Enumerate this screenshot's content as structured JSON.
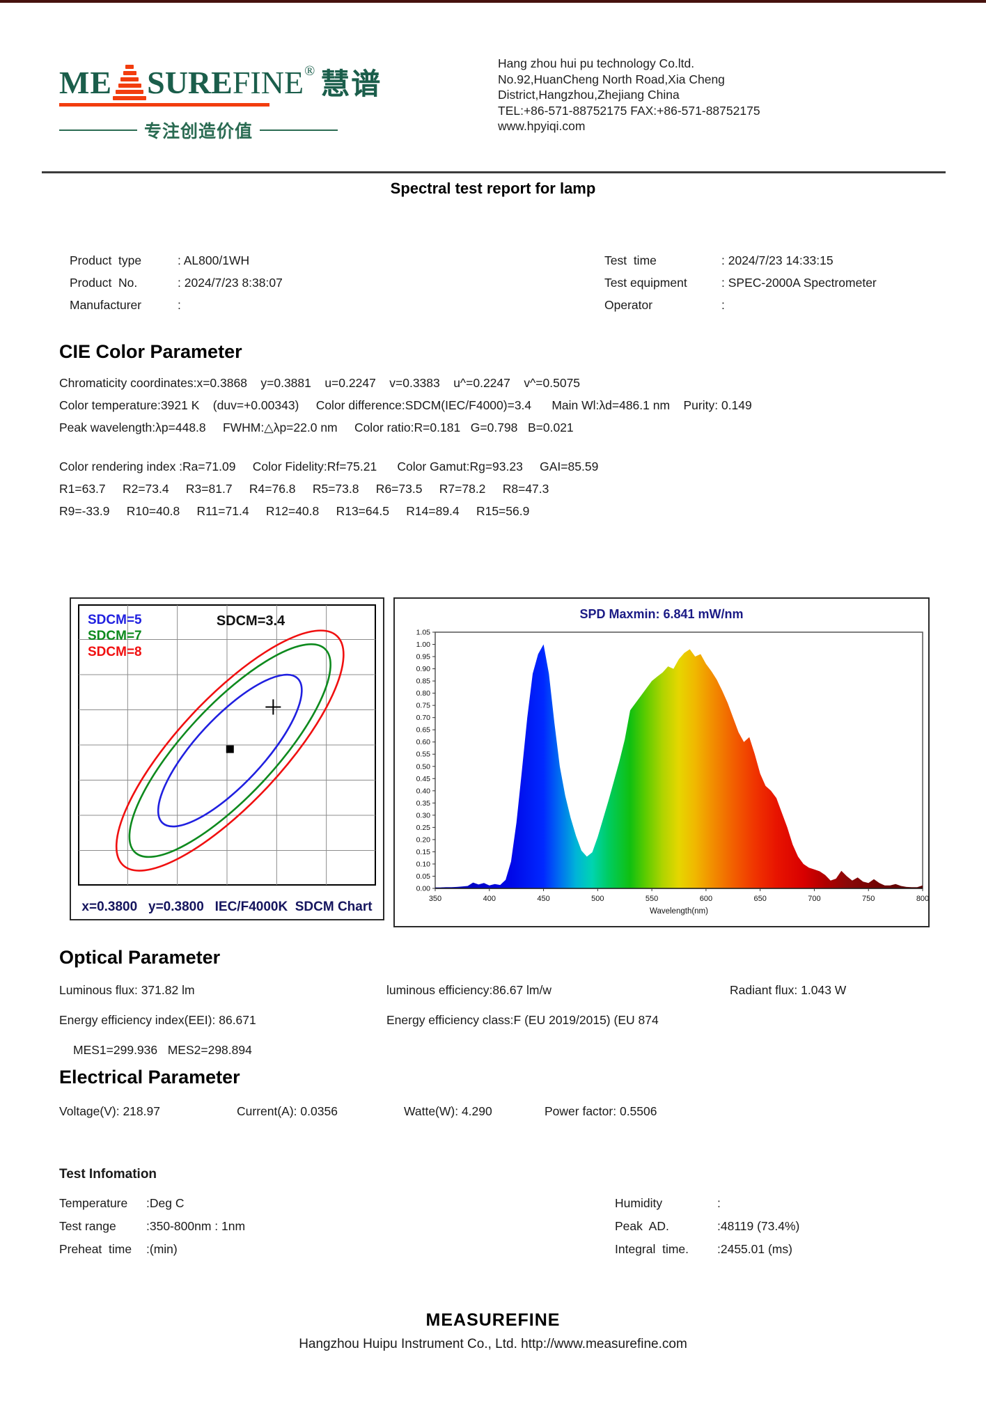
{
  "header": {
    "logo": {
      "part1": "ME",
      "part2": "SURE",
      "part3": "FINE",
      "reg": "®",
      "cn": "慧谱",
      "tagline": "专注创造价值",
      "green": "#1b5e4b",
      "orange": "#f23d0e"
    },
    "company_lines": [
      "Hang zhou hui pu technology Co.ltd.",
      "No.92,HuanCheng North Road,Xia Cheng",
      "District,Hangzhou,Zhejiang China",
      "TEL:+86-571-88752175  FAX:+86-571-88752175",
      "www.hpyiqi.com"
    ]
  },
  "report_title": "Spectral test report for lamp",
  "product_info": {
    "left": [
      {
        "label": "Product  type",
        "value": ": AL800/1WH"
      },
      {
        "label": "Product  No.",
        "value": ": 2024/7/23 8:38:07"
      },
      {
        "label": "Manufacturer",
        "value": ":"
      }
    ],
    "right": [
      {
        "label": "Test  time",
        "value": ": 2024/7/23 14:33:15"
      },
      {
        "label": "Test equipment",
        "value": ": SPEC-2000A Spectrometer"
      },
      {
        "label": "Operator",
        "value": ":"
      }
    ]
  },
  "cie": {
    "heading": "CIE Color Parameter",
    "lines": [
      "Chromaticity coordinates:x=0.3868    y=0.3881    u=0.2247    v=0.3383    u^=0.2247    v^=0.5075",
      "Color temperature:3921 K    (duv=+0.00343)     Color difference:SDCM(IEC/F4000)=3.4      Main Wl:λd=486.1 nm    Purity: 0.149",
      "Peak wavelength:λp=448.8     FWHM:△λp=22.0 nm     Color ratio:R=0.181   G=0.798   B=0.021",
      "Color rendering index :Ra=71.09     Color Fidelity:Rf=75.21      Color Gamut:Rg=93.23     GAI=85.59",
      "R1=63.7     R2=73.4     R3=81.7     R4=76.8     R5=73.8     R6=73.5     R7=78.2     R8=47.3",
      "R9=-33.9     R10=40.8     R11=71.4     R12=40.8     R13=64.5     R14=89.4     R15=56.9"
    ]
  },
  "optical": {
    "heading": "Optical Parameter",
    "row1": [
      "Luminous flux: 371.82 lm",
      "luminous efficiency:86.67 lm/w",
      "Radiant flux: 1.043 W"
    ],
    "row2": [
      "Energy efficiency index(EEI): 86.671",
      "Energy efficiency class:F (EU 2019/2015) (EU 874"
    ],
    "row3": "MES1=299.936   MES2=298.894"
  },
  "electrical": {
    "heading": "Electrical Parameter",
    "items": [
      "Voltage(V): 218.97",
      "Current(A): 0.0356",
      "Watte(W): 4.290",
      "Power factor: 0.5506"
    ]
  },
  "test_info": {
    "heading": "Test Infomation",
    "left": [
      {
        "label": "Temperature",
        "value": ":Deg C"
      },
      {
        "label": "Test range",
        "value": ":350-800nm : 1nm"
      },
      {
        "label": "Preheat  time",
        "value": ":(min)"
      }
    ],
    "right": [
      {
        "label": "Humidity",
        "value": ":"
      },
      {
        "label": "Peak  AD.",
        "value": ":48119 (73.4%)"
      },
      {
        "label": "Integral  time.",
        "value": ":2455.01 (ms)"
      }
    ]
  },
  "footer": {
    "brand": "MEASUREFINE",
    "line": "Hangzhou Huipu Instrument Co., Ltd. http://www.measurefine.com"
  },
  "chart_data": [
    {
      "type": "scatter",
      "name": "SDCM ellipse chart",
      "title": "SDCM=3.4",
      "caption": "x=0.3800   y=0.3800   IEC/F4000K  SDCM Chart",
      "legend": [
        {
          "label": "SDCM=5",
          "color": "#2020e0"
        },
        {
          "label": "SDCM=7",
          "color": "#0e8a1e"
        },
        {
          "label": "SDCM=8",
          "color": "#f01010"
        }
      ],
      "grid": {
        "cols": 6,
        "rows": 8,
        "color": "#8c8c8c"
      },
      "ellipses": [
        {
          "sdcm": 5,
          "color": "#2020e0",
          "cx": 0.51,
          "cy": 0.52,
          "rx": 0.332,
          "ry": 0.119,
          "rotation_deg": -47
        },
        {
          "sdcm": 7,
          "color": "#0e8a1e",
          "cx": 0.51,
          "cy": 0.52,
          "rx": 0.467,
          "ry": 0.161,
          "rotation_deg": -47
        },
        {
          "sdcm": 8,
          "color": "#f01010",
          "cx": 0.51,
          "cy": 0.52,
          "rx": 0.526,
          "ry": 0.186,
          "rotation_deg": -47
        }
      ],
      "markers": [
        {
          "name": "reference-center",
          "shape": "square",
          "color": "#000000",
          "x": 0.51,
          "y": 0.515,
          "chromaticity": {
            "x": 0.38,
            "y": 0.38
          }
        },
        {
          "name": "measured-point",
          "shape": "cross",
          "color": "#000000",
          "x": 0.655,
          "y": 0.365,
          "chromaticity": {
            "x": 0.3868,
            "y": 0.3881
          }
        }
      ]
    },
    {
      "type": "area",
      "name": "SPD spectrum",
      "title": "SPD Maxmin: 6.841 mW/nm",
      "title_color": "#1a1a85",
      "xlabel": "Wavelength(nm)",
      "xlim": [
        350,
        800
      ],
      "ylim": [
        0,
        1.05
      ],
      "x_tick_step": 50,
      "y_tick_step": 0.05,
      "x_start": 350,
      "x_step": 5,
      "values": [
        0.004,
        0.004,
        0.005,
        0.005,
        0.006,
        0.008,
        0.01,
        0.024,
        0.016,
        0.022,
        0.012,
        0.018,
        0.014,
        0.035,
        0.11,
        0.27,
        0.48,
        0.7,
        0.88,
        0.96,
        1.0,
        0.88,
        0.68,
        0.5,
        0.38,
        0.29,
        0.215,
        0.155,
        0.13,
        0.148,
        0.21,
        0.285,
        0.36,
        0.44,
        0.52,
        0.61,
        0.73,
        0.76,
        0.79,
        0.82,
        0.85,
        0.868,
        0.885,
        0.91,
        0.9,
        0.94,
        0.965,
        0.98,
        0.95,
        0.96,
        0.92,
        0.89,
        0.855,
        0.81,
        0.76,
        0.7,
        0.64,
        0.6,
        0.62,
        0.55,
        0.47,
        0.42,
        0.4,
        0.37,
        0.31,
        0.25,
        0.18,
        0.13,
        0.1,
        0.085,
        0.078,
        0.07,
        0.055,
        0.032,
        0.04,
        0.072,
        0.05,
        0.032,
        0.045,
        0.028,
        0.022,
        0.038,
        0.022,
        0.012,
        0.012,
        0.018,
        0.01,
        0.006,
        0.005,
        0.005,
        0.012
      ],
      "gradient": [
        {
          "offset": 0.0,
          "color": "#0000a8"
        },
        {
          "offset": 0.156,
          "color": "#0008e8"
        },
        {
          "offset": 0.222,
          "color": "#0028ff"
        },
        {
          "offset": 0.256,
          "color": "#0070f0"
        },
        {
          "offset": 0.289,
          "color": "#00b4d8"
        },
        {
          "offset": 0.322,
          "color": "#00d4b0"
        },
        {
          "offset": 0.356,
          "color": "#00cc60"
        },
        {
          "offset": 0.4,
          "color": "#10c010"
        },
        {
          "offset": 0.433,
          "color": "#60cc00"
        },
        {
          "offset": 0.467,
          "color": "#b0d400"
        },
        {
          "offset": 0.5,
          "color": "#e6d600"
        },
        {
          "offset": 0.533,
          "color": "#f0b800"
        },
        {
          "offset": 0.567,
          "color": "#f29000"
        },
        {
          "offset": 0.611,
          "color": "#f26000"
        },
        {
          "offset": 0.656,
          "color": "#f03400"
        },
        {
          "offset": 0.7,
          "color": "#e81400"
        },
        {
          "offset": 0.756,
          "color": "#d80000"
        },
        {
          "offset": 0.8,
          "color": "#b00000"
        },
        {
          "offset": 0.844,
          "color": "#8c0808"
        },
        {
          "offset": 0.911,
          "color": "#700404"
        },
        {
          "offset": 1.0,
          "color": "#580202"
        }
      ]
    }
  ]
}
